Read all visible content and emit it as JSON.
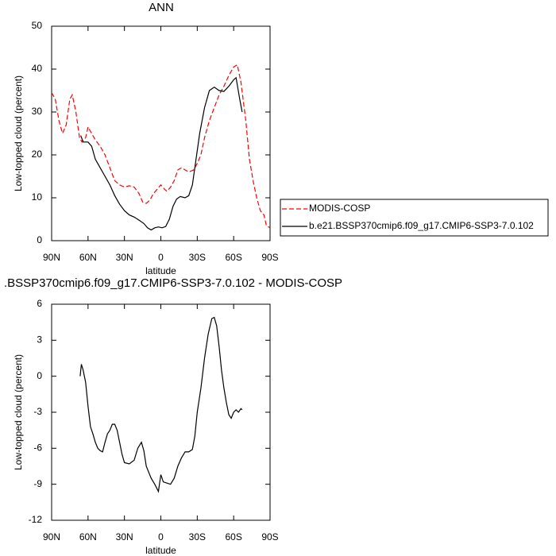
{
  "chart_data": [
    {
      "type": "line",
      "title": "ANN",
      "x_label": "latitude",
      "y_label": "Low-topped cloud (percent)",
      "xlim": [
        90,
        -90
      ],
      "ylim": [
        0,
        50
      ],
      "xticks": [
        {
          "value": 90,
          "label": "90N"
        },
        {
          "value": 60,
          "label": "60N"
        },
        {
          "value": 30,
          "label": "30N"
        },
        0,
        {
          "value": -30,
          "label": "30S"
        },
        {
          "value": -60,
          "label": "60S"
        },
        {
          "value": -90,
          "label": "90S"
        }
      ],
      "yticks": [
        0,
        10,
        20,
        30,
        40,
        50
      ],
      "legend": "right",
      "series": [
        {
          "name": "MODIS-COSP",
          "color": "#ff0000",
          "style": "dashed",
          "x": [
            90,
            87,
            84,
            81,
            78,
            75,
            73,
            70,
            67,
            65,
            62,
            60,
            57,
            54,
            50,
            46,
            42,
            38,
            34,
            30,
            26,
            22,
            18,
            15,
            12,
            9,
            6,
            3,
            0,
            -3,
            -5,
            -8,
            -11,
            -14,
            -17,
            -20,
            -23,
            -27,
            -30,
            -33,
            -36,
            -40,
            -44,
            -48,
            -52,
            -56,
            -60,
            -63,
            -66,
            -70,
            -73,
            -76,
            -79,
            -82,
            -85,
            -87,
            -90
          ],
          "values": [
            34.5,
            33,
            28,
            25,
            27,
            33,
            34,
            30,
            24,
            23,
            24,
            26.5,
            25,
            23.5,
            22,
            20,
            17,
            14,
            13,
            12.5,
            12.8,
            12.5,
            11,
            9,
            8.7,
            9.5,
            11,
            12,
            13,
            12,
            11.5,
            12.5,
            14,
            16.5,
            17,
            16.5,
            16,
            16.5,
            18,
            20,
            24,
            28,
            31,
            34,
            36,
            38.5,
            40.5,
            41,
            37,
            28,
            19,
            14,
            10,
            7,
            6,
            3.5,
            3
          ]
        },
        {
          "name": "b.e21.BSSP370cmip6.f09_g17.CMIP6-SSP3-7.0.102",
          "color": "#000000",
          "style": "solid",
          "x": [
            66,
            64,
            60,
            57,
            54,
            50,
            46,
            42,
            38,
            34,
            30,
            26,
            22,
            18,
            14,
            11,
            8,
            5,
            2,
            -1,
            -4,
            -7,
            -10,
            -13,
            -16,
            -20,
            -23,
            -26,
            -29,
            -32,
            -36,
            -40,
            -44,
            -48,
            -52,
            -56,
            -60,
            -62,
            -65,
            -67
          ],
          "values": [
            24.5,
            23,
            23,
            22,
            19,
            17,
            15,
            13,
            10.5,
            8.5,
            7,
            6,
            5.5,
            4.8,
            4,
            3,
            2.5,
            3,
            3.2,
            3,
            3.3,
            5,
            8,
            9.7,
            10.3,
            10,
            10.5,
            13,
            19,
            25,
            31,
            35,
            35.8,
            35,
            34.8,
            36,
            37.5,
            38,
            33,
            30
          ]
        }
      ]
    },
    {
      "type": "line",
      "title": ".BSSP370cmip6.f09_g17.CMIP6-SSP3-7.0.102 - MODIS-COSP",
      "x_label": "latitude",
      "y_label": "Low-topped cloud (percent)",
      "xlim": [
        90,
        -90
      ],
      "ylim": [
        -12,
        6
      ],
      "xticks": [
        {
          "value": 90,
          "label": "90N"
        },
        {
          "value": 60,
          "label": "60N"
        },
        {
          "value": 30,
          "label": "30N"
        },
        0,
        {
          "value": -30,
          "label": "30S"
        },
        {
          "value": -60,
          "label": "60S"
        },
        {
          "value": -90,
          "label": "90S"
        }
      ],
      "yticks": [
        6,
        3,
        0,
        -3,
        -6,
        -9,
        -12
      ],
      "series": [
        {
          "color": "#000000",
          "style": "solid",
          "x": [
            66.5,
            65.5,
            64,
            62,
            60,
            58,
            56,
            54,
            52,
            50,
            48,
            46,
            44,
            42,
            40,
            38,
            36,
            34,
            32,
            30,
            26,
            22,
            19,
            16,
            14,
            12,
            10,
            8,
            5,
            2,
            0,
            -2,
            -5,
            -8,
            -11,
            -14,
            -17,
            -20,
            -23,
            -26,
            -28,
            -30,
            -33,
            -36,
            -39,
            -42,
            -44,
            -46,
            -48,
            -50,
            -52,
            -54,
            -56,
            -58,
            -60,
            -62,
            -64,
            -66,
            -67
          ],
          "values": [
            0,
            1.0,
            0.5,
            -0.5,
            -2.5,
            -4.2,
            -4.8,
            -5.5,
            -6,
            -6.2,
            -6.3,
            -5.5,
            -4.8,
            -4.5,
            -4,
            -4,
            -4.5,
            -5.5,
            -6.5,
            -7.2,
            -7.3,
            -7,
            -6,
            -5.5,
            -6.2,
            -7.5,
            -8,
            -8.5,
            -9,
            -9.6,
            -8.2,
            -8.8,
            -8.9,
            -9,
            -8.5,
            -7.5,
            -6.8,
            -6.3,
            -6.3,
            -6.1,
            -5,
            -3,
            -1,
            1.5,
            3.5,
            4.8,
            4.9,
            4.2,
            2.5,
            0.5,
            -1,
            -2.2,
            -3.2,
            -3.5,
            -3,
            -2.8,
            -3,
            -2.7,
            -2.8
          ]
        }
      ]
    }
  ]
}
